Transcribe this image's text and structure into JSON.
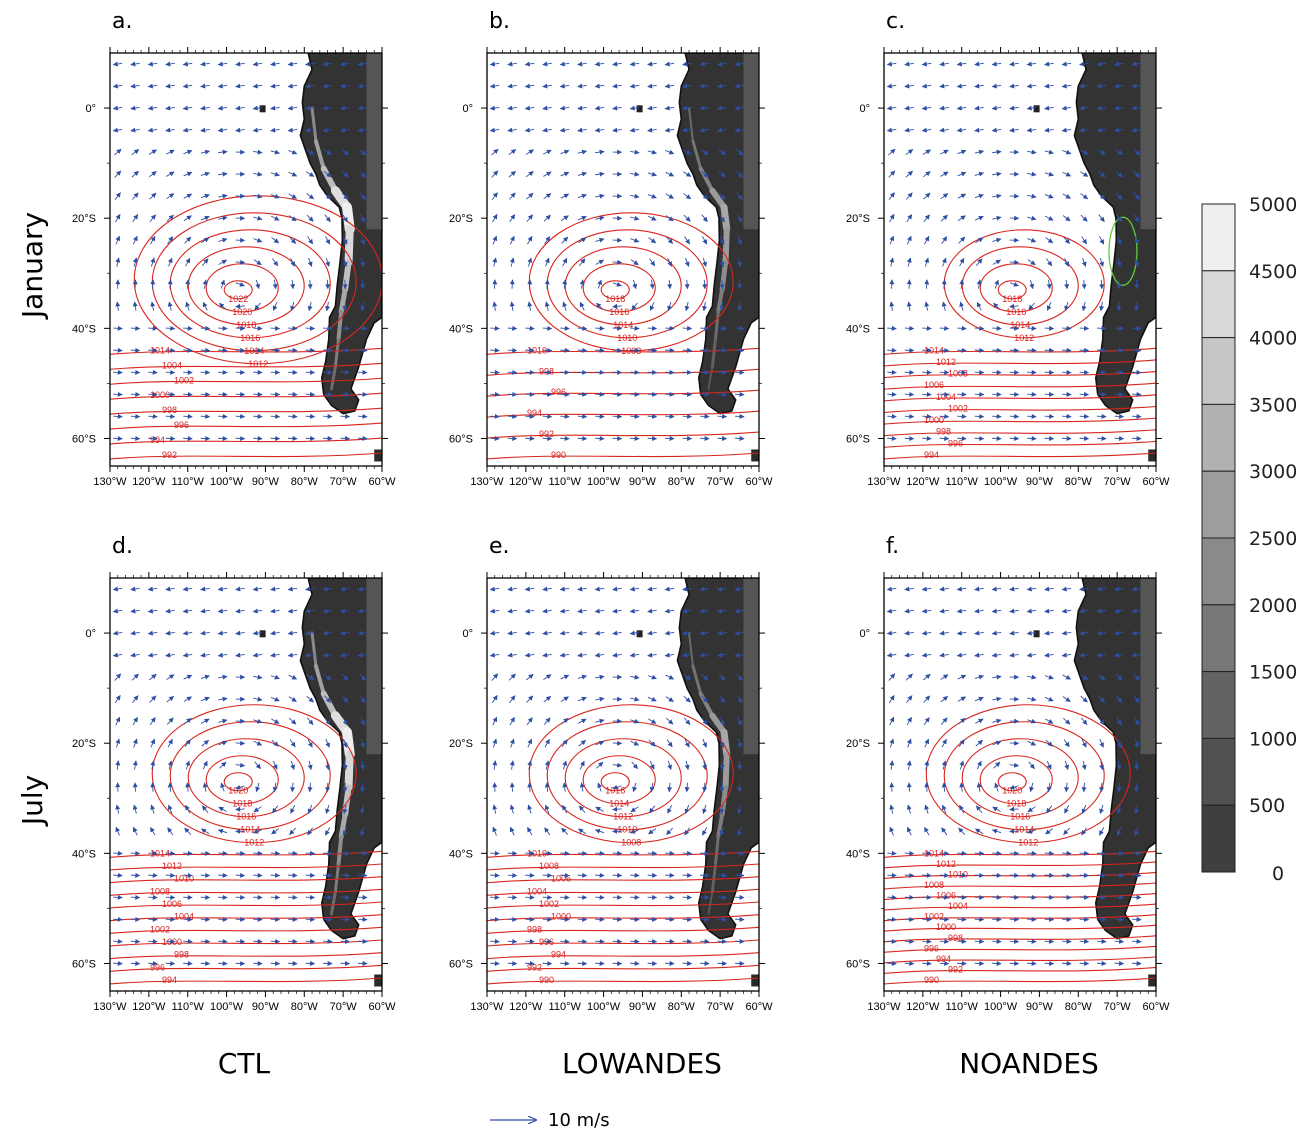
{
  "panels": [
    {
      "letter": "a.",
      "row": 0,
      "col": 0,
      "high": 1022,
      "highLabels": [
        "1022",
        "1020",
        "1018",
        "1016",
        "1014",
        "1012"
      ],
      "southLabels": [
        "1014",
        "1004",
        "1002",
        "1000",
        "998",
        "996",
        "994",
        "992"
      ],
      "andes": "ctl",
      "season": "jan"
    },
    {
      "letter": "b.",
      "row": 0,
      "col": 1,
      "high": 1018,
      "highLabels": [
        "1018",
        "1016",
        "1014",
        "1010",
        "1008"
      ],
      "southLabels": [
        "1010",
        "998",
        "996",
        "994",
        "992",
        "990"
      ],
      "andes": "low",
      "season": "jan"
    },
    {
      "letter": "c.",
      "row": 0,
      "col": 2,
      "high": 1018,
      "highLabels": [
        "1018",
        "1016",
        "1014",
        "1012"
      ],
      "southLabels": [
        "1014",
        "1012",
        "1008",
        "1006",
        "1004",
        "1002",
        "1000",
        "998",
        "996",
        "994"
      ],
      "andes": "none",
      "season": "jan"
    },
    {
      "letter": "d.",
      "row": 1,
      "col": 0,
      "high": 1020,
      "highLabels": [
        "1020",
        "1018",
        "1016",
        "1014",
        "1012"
      ],
      "southLabels": [
        "1014",
        "1012",
        "1010",
        "1008",
        "1006",
        "1004",
        "1002",
        "1000",
        "998",
        "996",
        "994"
      ],
      "andes": "ctl",
      "season": "jul"
    },
    {
      "letter": "e.",
      "row": 1,
      "col": 1,
      "high": 1016,
      "highLabels": [
        "1016",
        "1014",
        "1012",
        "1010",
        "1008"
      ],
      "southLabels": [
        "1010",
        "1008",
        "1006",
        "1004",
        "1002",
        "1000",
        "998",
        "996",
        "994",
        "992",
        "990"
      ],
      "andes": "low",
      "season": "jul"
    },
    {
      "letter": "f.",
      "row": 1,
      "col": 2,
      "high": 1020,
      "highLabels": [
        "1020",
        "1018",
        "1016",
        "1014",
        "1012"
      ],
      "southLabels": [
        "1014",
        "1012",
        "1010",
        "1008",
        "1006",
        "1004",
        "1002",
        "1000",
        "998",
        "996",
        "994",
        "992",
        "990"
      ],
      "andes": "none",
      "season": "jul"
    }
  ],
  "axes": {
    "lon_ticks": [
      "130°W",
      "120°W",
      "110°W",
      "100°W",
      "90°W",
      "80°W",
      "70°W",
      "60°W"
    ],
    "lon_values": [
      -130,
      -120,
      -110,
      -100,
      -90,
      -80,
      -70,
      -60
    ],
    "lat_ticks": [
      "0°",
      "20°S",
      "40°S",
      "60°S"
    ],
    "lat_values": [
      0,
      -20,
      -40,
      -60
    ],
    "lon_range": [
      -130,
      -60
    ],
    "lat_range": [
      -65,
      10
    ]
  },
  "rows": [
    "January",
    "July"
  ],
  "cols": [
    "CTL",
    "LOWANDES",
    "NOANDES"
  ],
  "colorbar": {
    "labels": [
      "5000",
      "4500",
      "4000",
      "3500",
      "3000",
      "2500",
      "2000",
      "1500",
      "1000",
      "500",
      "0"
    ],
    "values": [
      5000,
      4500,
      4000,
      3500,
      3000,
      2500,
      2000,
      1500,
      1000,
      500,
      0
    ]
  },
  "reference_vector": {
    "label": "10 m/s"
  },
  "colors": {
    "contour": "#d8261e",
    "vector": "#2e4fa3",
    "green": "#5fcf3a",
    "land_low": "#333333",
    "land_high": "#f0f0f0"
  }
}
